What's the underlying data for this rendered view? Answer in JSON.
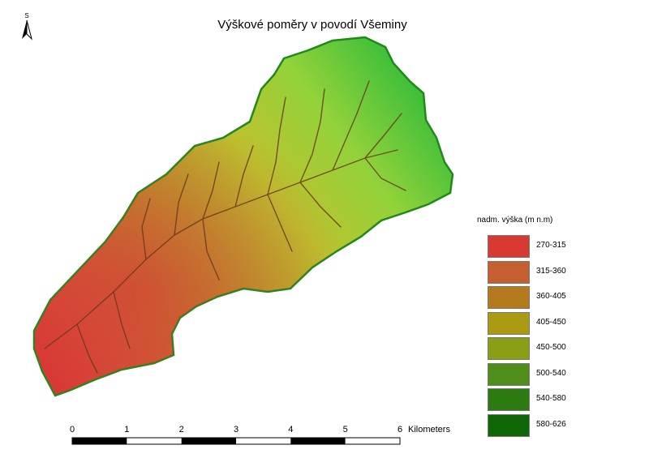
{
  "title": "Výškové poměry v povodí Všeminy",
  "north_arrow": {
    "label": "S",
    "icon": "north-arrow-icon"
  },
  "legend": {
    "title": "nadm. výška (m n.m)",
    "classes": [
      {
        "label": "270-315",
        "color": "#d83a33"
      },
      {
        "label": "315-360",
        "color": "#c4602f"
      },
      {
        "label": "360-405",
        "color": "#b47a1d"
      },
      {
        "label": "405-450",
        "color": "#aa9a14"
      },
      {
        "label": "450-500",
        "color": "#8c9d16"
      },
      {
        "label": "500-540",
        "color": "#4f8e19"
      },
      {
        "label": "540-580",
        "color": "#2c7b10"
      },
      {
        "label": "580-626",
        "color": "#0e6606"
      }
    ]
  },
  "scale_bar": {
    "labels": [
      "0",
      "1",
      "2",
      "3",
      "4",
      "5",
      "6"
    ],
    "unit": "Kilometers"
  },
  "boundary_color": "#1f8a1a"
}
